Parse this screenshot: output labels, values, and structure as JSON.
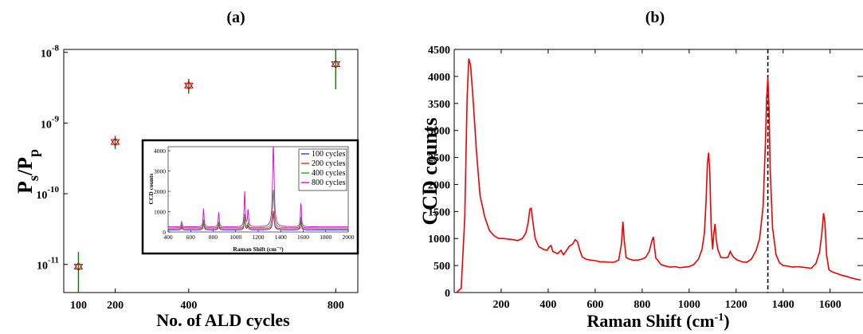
{
  "panel_labels": {
    "a": "(a)",
    "b": "(b)"
  },
  "chart_data": [
    {
      "id": "a",
      "type": "scatter",
      "xlabel": "No. of ALD cycles",
      "ylabel": "P_s/P_p",
      "xscale": "linear",
      "yscale": "log",
      "xlim": [
        60,
        860
      ],
      "ylim": [
        4e-12,
        1.1e-08
      ],
      "xticks": [
        100,
        200,
        400,
        800
      ],
      "yticks": [
        {
          "value": 1e-11,
          "base": "10",
          "exp": "-11"
        },
        {
          "value": 1e-10,
          "base": "10",
          "exp": "-10"
        },
        {
          "value": 1e-09,
          "base": "10",
          "exp": "-9"
        },
        {
          "value": 1e-08,
          "base": "10",
          "exp": "-8"
        }
      ],
      "points": [
        {
          "x": 100,
          "y": 9.3e-12,
          "err_low": 4e-12,
          "err_high": 1.5e-11
        },
        {
          "x": 200,
          "y": 5.4e-10,
          "err_low": 4.3e-10,
          "err_high": 6.6e-10
        },
        {
          "x": 400,
          "y": 3.4e-09,
          "err_low": 2.6e-09,
          "err_high": 4.2e-09
        },
        {
          "x": 800,
          "y": 6.8e-09,
          "err_low": 3e-09,
          "err_high": 1.1e-08
        }
      ],
      "marker_color": "#cc0000",
      "errorbar_color": "#008000",
      "inset": {
        "type": "line",
        "xlabel": "Raman Shift (cm⁻¹)",
        "ylabel": "CCD counts",
        "xlim": [
          400,
          2000
        ],
        "ylim": [
          0,
          4200
        ],
        "xticks": [
          400,
          600,
          800,
          1000,
          1200,
          1400,
          1600,
          1800,
          2000
        ],
        "yticks": [
          0,
          1000,
          2000,
          3000,
          4000
        ],
        "legend_position": "top-right",
        "series": [
          {
            "name": "100 cycles",
            "color": "#3333ff",
            "peaks": [
              [
                520,
                120
              ],
              [
                715,
                350
              ],
              [
                850,
                270
              ],
              [
                1080,
                600
              ],
              [
                1110,
                200
              ],
              [
                1335,
                800
              ],
              [
                1580,
                400
              ]
            ],
            "baseline": 100
          },
          {
            "name": "200 cycles",
            "color": "#ff2222",
            "peaks": [
              [
                520,
                120
              ],
              [
                715,
                350
              ],
              [
                850,
                270
              ],
              [
                1080,
                600
              ],
              [
                1110,
                200
              ],
              [
                1335,
                900
              ],
              [
                1580,
                400
              ]
            ],
            "baseline": 150
          },
          {
            "name": "400 cycles",
            "color": "#22aa22",
            "peaks": [
              [
                520,
                140
              ],
              [
                715,
                400
              ],
              [
                850,
                300
              ],
              [
                1080,
                700
              ],
              [
                1110,
                250
              ],
              [
                1335,
                1900
              ],
              [
                1580,
                550
              ]
            ],
            "baseline": 200
          },
          {
            "name": "800 cycles",
            "color": "#dd00dd",
            "peaks": [
              [
                520,
                250
              ],
              [
                715,
                900
              ],
              [
                850,
                720
              ],
              [
                1080,
                1800
              ],
              [
                1110,
                850
              ],
              [
                1335,
                4100
              ],
              [
                1580,
                1200
              ]
            ],
            "baseline": 250
          }
        ]
      }
    },
    {
      "id": "b",
      "type": "line",
      "xlabel": "Raman Shift (cm⁻¹)",
      "ylabel": "CCD counts",
      "xlim": [
        0,
        1740
      ],
      "ylim": [
        0,
        4500
      ],
      "xticks": [
        200,
        400,
        600,
        800,
        1000,
        1200,
        1400,
        1600
      ],
      "yticks": [
        0,
        500,
        1000,
        1500,
        2000,
        2500,
        3000,
        3500,
        4000,
        4500
      ],
      "line_color": "#ee0000",
      "vline_x": 1335,
      "x": [
        10,
        30,
        45,
        55,
        62,
        70,
        80,
        95,
        110,
        130,
        150,
        170,
        190,
        210,
        230,
        250,
        270,
        290,
        305,
        315,
        322,
        328,
        335,
        345,
        360,
        380,
        395,
        405,
        412,
        420,
        440,
        455,
        465,
        475,
        490,
        505,
        515,
        525,
        535,
        545,
        560,
        580,
        600,
        620,
        640,
        660,
        680,
        700,
        712,
        718,
        724,
        732,
        745,
        760,
        780,
        800,
        815,
        830,
        842,
        848,
        853,
        858,
        866,
        880,
        900,
        920,
        940,
        960,
        980,
        1000,
        1020,
        1040,
        1055,
        1065,
        1072,
        1078,
        1083,
        1088,
        1094,
        1100,
        1105,
        1110,
        1115,
        1122,
        1135,
        1150,
        1165,
        1175,
        1182,
        1190,
        1205,
        1225,
        1245,
        1265,
        1285,
        1300,
        1315,
        1325,
        1330,
        1335,
        1340,
        1345,
        1355,
        1370,
        1385,
        1400,
        1420,
        1440,
        1460,
        1480,
        1500,
        1520,
        1540,
        1555,
        1565,
        1572,
        1578,
        1585,
        1595,
        1610,
        1630,
        1650,
        1670,
        1690,
        1710,
        1730
      ],
      "y": [
        0,
        80,
        1400,
        3600,
        4330,
        4200,
        3600,
        2600,
        1800,
        1400,
        1150,
        1050,
        1000,
        1000,
        990,
        980,
        960,
        1000,
        1100,
        1300,
        1540,
        1560,
        1300,
        1000,
        850,
        800,
        780,
        850,
        870,
        760,
        720,
        780,
        700,
        760,
        860,
        900,
        980,
        940,
        780,
        660,
        620,
        600,
        590,
        570,
        570,
        560,
        560,
        600,
        900,
        1310,
        950,
        650,
        620,
        600,
        600,
        620,
        650,
        760,
        960,
        1030,
        820,
        640,
        600,
        520,
        490,
        470,
        480,
        460,
        470,
        480,
        520,
        620,
        800,
        1100,
        1700,
        2400,
        2590,
        2200,
        1200,
        800,
        1100,
        1270,
        1000,
        800,
        650,
        640,
        650,
        760,
        700,
        650,
        600,
        570,
        560,
        620,
        780,
        1000,
        1600,
        2800,
        3600,
        3980,
        3400,
        2300,
        1200,
        700,
        550,
        500,
        490,
        470,
        480,
        470,
        460,
        450,
        540,
        750,
        1100,
        1470,
        1300,
        700,
        420,
        380,
        350,
        320,
        300,
        270,
        250,
        230
      ]
    }
  ]
}
